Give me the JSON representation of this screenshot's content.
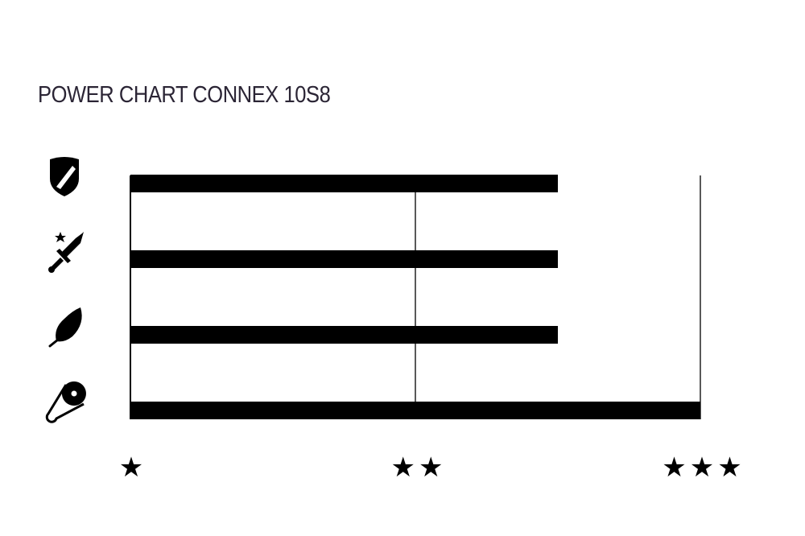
{
  "chart_data": {
    "type": "bar",
    "orientation": "horizontal",
    "title": "POWER CHART CONNEX 10S8",
    "categories": [
      "shield-icon",
      "sword-icon",
      "feather-icon",
      "chain-gear-icon"
    ],
    "values": [
      2.5,
      2.5,
      2.5,
      3
    ],
    "xlim": [
      1,
      3
    ],
    "x_tick_labels": [
      "★",
      "★★",
      "★★★"
    ],
    "x_ticks": [
      1,
      2,
      3
    ],
    "grid": true,
    "bar_color": "#000000"
  }
}
